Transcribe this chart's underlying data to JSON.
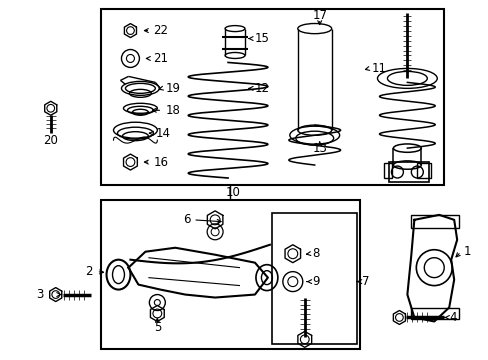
{
  "bg_color": "#ffffff",
  "line_color": "#000000",
  "text_color": "#000000",
  "fig_width": 4.89,
  "fig_height": 3.6,
  "dpi": 100,
  "font_size": 8.5
}
